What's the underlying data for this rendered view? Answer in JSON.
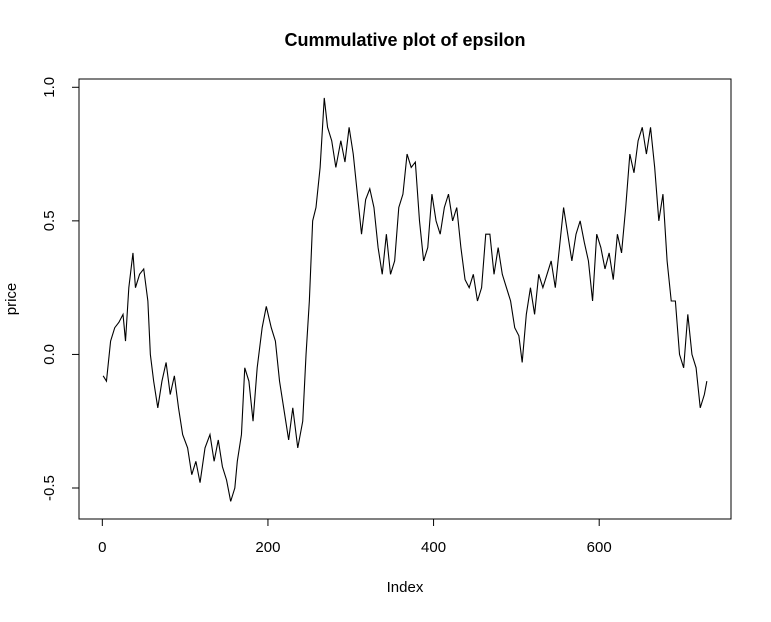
{
  "chart_data": {
    "type": "line",
    "title": "Cummulative plot of epsilon",
    "x_label": "Index",
    "y_label": "price",
    "color": "#000000",
    "x": [
      1,
      5,
      10,
      15,
      20,
      25,
      28,
      32,
      37,
      40,
      45,
      50,
      55,
      58,
      62,
      67,
      72,
      77,
      82,
      87,
      92,
      97,
      103,
      108,
      113,
      118,
      124,
      130,
      135,
      140,
      145,
      150,
      155,
      160,
      163,
      168,
      172,
      177,
      182,
      187,
      193,
      198,
      204,
      209,
      214,
      219,
      225,
      230,
      236,
      242,
      246,
      250,
      254,
      258,
      263,
      268,
      272,
      277,
      282,
      288,
      293,
      298,
      303,
      308,
      313,
      318,
      323,
      328,
      333,
      338,
      343,
      348,
      353,
      358,
      363,
      368,
      373,
      378,
      383,
      388,
      393,
      398,
      403,
      408,
      413,
      418,
      423,
      428,
      433,
      438,
      443,
      448,
      453,
      458,
      463,
      468,
      473,
      478,
      483,
      488,
      493,
      498,
      503,
      507,
      512,
      517,
      522,
      527,
      532,
      537,
      542,
      547,
      552,
      557,
      562,
      567,
      572,
      577,
      582,
      587,
      592,
      597,
      602,
      607,
      612,
      617,
      622,
      627,
      632,
      637,
      642,
      647,
      652,
      657,
      662,
      667,
      672,
      677,
      682,
      687,
      692,
      697,
      702,
      707,
      712,
      717,
      722,
      727,
      730
    ],
    "values": [
      -0.08,
      -0.1,
      0.05,
      0.1,
      0.12,
      0.15,
      0.05,
      0.25,
      0.38,
      0.25,
      0.3,
      0.32,
      0.2,
      0.0,
      -0.1,
      -0.2,
      -0.1,
      -0.03,
      -0.15,
      -0.08,
      -0.2,
      -0.3,
      -0.35,
      -0.45,
      -0.4,
      -0.48,
      -0.35,
      -0.3,
      -0.4,
      -0.32,
      -0.42,
      -0.47,
      -0.55,
      -0.5,
      -0.4,
      -0.3,
      -0.05,
      -0.1,
      -0.25,
      -0.05,
      0.1,
      0.18,
      0.1,
      0.05,
      -0.1,
      -0.2,
      -0.32,
      -0.2,
      -0.35,
      -0.25,
      0.0,
      0.2,
      0.5,
      0.55,
      0.7,
      0.96,
      0.85,
      0.8,
      0.7,
      0.8,
      0.72,
      0.85,
      0.75,
      0.6,
      0.45,
      0.58,
      0.62,
      0.55,
      0.4,
      0.3,
      0.45,
      0.3,
      0.35,
      0.55,
      0.6,
      0.75,
      0.7,
      0.72,
      0.5,
      0.35,
      0.4,
      0.6,
      0.5,
      0.45,
      0.55,
      0.6,
      0.5,
      0.55,
      0.4,
      0.28,
      0.25,
      0.3,
      0.2,
      0.25,
      0.45,
      0.45,
      0.3,
      0.4,
      0.3,
      0.25,
      0.2,
      0.1,
      0.07,
      -0.03,
      0.15,
      0.25,
      0.15,
      0.3,
      0.25,
      0.3,
      0.35,
      0.25,
      0.4,
      0.55,
      0.45,
      0.35,
      0.45,
      0.5,
      0.42,
      0.35,
      0.2,
      0.45,
      0.4,
      0.32,
      0.38,
      0.28,
      0.45,
      0.38,
      0.55,
      0.75,
      0.68,
      0.8,
      0.85,
      0.75,
      0.85,
      0.7,
      0.5,
      0.6,
      0.35,
      0.2,
      0.2,
      0.0,
      -0.05,
      0.15,
      0.0,
      -0.05,
      -0.2,
      -0.15,
      -0.1
    ],
    "xlim": [
      -28.16,
      759.16
    ],
    "ylim": [
      -0.616,
      1.031
    ],
    "xticks": [
      0,
      200,
      400,
      600
    ],
    "yticks": [
      -0.5,
      {
        "value": 0,
        "label": "0.0"
      },
      0.5,
      {
        "value": 1,
        "label": "1.0"
      }
    ]
  }
}
